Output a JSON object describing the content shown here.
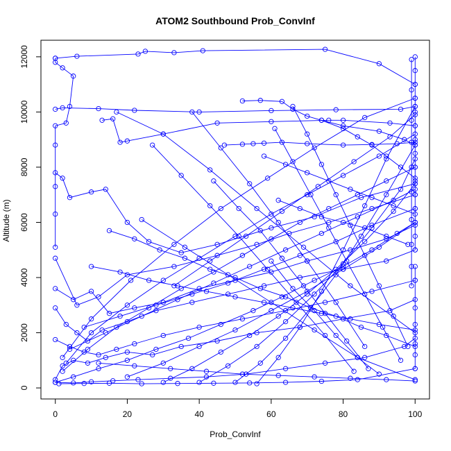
{
  "chart_data": {
    "type": "line",
    "title": "ATOM2 Southbound Prob_ConvInf",
    "xlabel": "Prob_ConvInf",
    "ylabel": "Altitude (m)",
    "xlim": [
      -4,
      104
    ],
    "ylim": [
      -400,
      12600
    ],
    "xticks": [
      0,
      20,
      40,
      60,
      80,
      100
    ],
    "yticks": [
      0,
      2000,
      4000,
      6000,
      8000,
      10000,
      12000
    ],
    "grid": false,
    "legend": "none",
    "series_color": "#0000ff",
    "marker": "open-circle",
    "series": [
      {
        "x": [
          0,
          0,
          2,
          5,
          4,
          3,
          0,
          0,
          0,
          0,
          0
        ],
        "y": [
          11950,
          11800,
          11600,
          11300,
          10200,
          9600,
          9500,
          8800,
          7300,
          6300,
          5100
        ]
      },
      {
        "x": [
          0,
          6,
          23,
          25,
          33,
          41,
          75,
          90,
          100
        ],
        "y": [
          11950,
          12020,
          12100,
          12200,
          12150,
          12220,
          12270,
          11750,
          11000
        ]
      },
      {
        "x": [
          0,
          2,
          12,
          22,
          40,
          60,
          78,
          96,
          100
        ],
        "y": [
          10100,
          10150,
          10120,
          10060,
          10000,
          10050,
          10080,
          10100,
          10200
        ]
      },
      {
        "x": [
          52,
          57,
          63,
          66,
          70,
          74,
          80,
          90,
          97,
          100
        ],
        "y": [
          10400,
          10420,
          10380,
          10100,
          9850,
          9700,
          9500,
          9300,
          9000,
          8800
        ]
      },
      {
        "x": [
          13,
          16,
          18,
          20,
          30,
          45,
          60,
          76,
          80,
          93,
          100
        ],
        "y": [
          9700,
          9750,
          8900,
          8950,
          9200,
          9600,
          9650,
          9700,
          9700,
          9600,
          9500
        ]
      },
      {
        "x": [
          47,
          52,
          55,
          58,
          63,
          70,
          80,
          88,
          95,
          100
        ],
        "y": [
          8800,
          8830,
          8850,
          8870,
          8900,
          8850,
          8800,
          8820,
          8850,
          8900
        ]
      },
      {
        "x": [
          0,
          2,
          4,
          10,
          14,
          20,
          26,
          35,
          45,
          60,
          72,
          85,
          100
        ],
        "y": [
          7800,
          7600,
          6900,
          7100,
          7200,
          6000,
          5300,
          4900,
          5200,
          5800,
          6200,
          6900,
          7400
        ]
      },
      {
        "x": [
          0,
          6,
          12,
          20,
          33,
          45,
          56,
          65,
          76,
          88,
          100
        ],
        "y": [
          4700,
          3000,
          3300,
          4100,
          4400,
          4800,
          5200,
          5600,
          6000,
          6500,
          7000
        ]
      },
      {
        "x": [
          0,
          5,
          10,
          15,
          22,
          30,
          40,
          50,
          60,
          70,
          82,
          92,
          100
        ],
        "y": [
          3600,
          3200,
          3500,
          2700,
          2900,
          3100,
          3600,
          3900,
          4200,
          4600,
          5000,
          5400,
          5900
        ]
      },
      {
        "x": [
          0,
          3,
          6,
          9,
          13,
          20,
          28,
          38,
          48,
          58,
          68,
          80,
          92,
          100
        ],
        "y": [
          2900,
          2300,
          2000,
          1700,
          2100,
          2400,
          2800,
          3100,
          3400,
          3700,
          4000,
          4300,
          4600,
          5000
        ]
      },
      {
        "x": [
          0,
          4,
          8,
          12,
          17,
          22,
          30,
          40,
          52,
          64,
          75,
          88,
          100
        ],
        "y": [
          1750,
          1500,
          1300,
          1200,
          1400,
          1600,
          1900,
          2200,
          2500,
          2800,
          3100,
          3500,
          3900
        ]
      },
      {
        "x": [
          0,
          2,
          5,
          9,
          14,
          20,
          27,
          35,
          45,
          56,
          68,
          80,
          93,
          100
        ],
        "y": [
          300,
          800,
          1000,
          900,
          1100,
          1300,
          1200,
          1500,
          1700,
          2000,
          2200,
          2500,
          2800,
          3200
        ]
      },
      {
        "x": [
          0,
          5,
          10,
          16,
          23,
          32,
          42,
          53,
          64,
          75,
          86,
          97,
          100
        ],
        "y": [
          200,
          180,
          220,
          260,
          300,
          350,
          400,
          500,
          700,
          900,
          1100,
          1500,
          1800
        ]
      },
      {
        "x": [
          1,
          8,
          15,
          24,
          34,
          44,
          54,
          64,
          74,
          84,
          100
        ],
        "y": [
          150,
          160,
          170,
          150,
          160,
          170,
          180,
          200,
          240,
          300,
          700
        ]
      },
      {
        "x": [
          100,
          95,
          88,
          80,
          72,
          63,
          55,
          46,
          37,
          28,
          20,
          12,
          5,
          0
        ],
        "y": [
          6000,
          5600,
          5000,
          4400,
          3900,
          3300,
          2800,
          2300,
          1800,
          1400,
          1000,
          700,
          400,
          200
        ]
      },
      {
        "x": [
          100,
          92,
          84,
          76,
          68,
          60,
          52,
          44,
          35,
          26,
          17,
          9,
          2
        ],
        "y": [
          8000,
          7500,
          7000,
          6500,
          6000,
          5400,
          4800,
          4200,
          3600,
          2900,
          2200,
          1400,
          600
        ]
      },
      {
        "x": [
          100,
          90,
          80,
          70,
          60,
          50,
          40,
          30,
          20,
          10,
          3
        ],
        "y": [
          9200,
          8400,
          7700,
          7000,
          6300,
          5500,
          4700,
          3900,
          3000,
          2000,
          900
        ]
      },
      {
        "x": [
          100,
          86,
          72,
          59,
          46,
          33,
          21,
          10,
          2
        ],
        "y": [
          10500,
          9800,
          8700,
          7600,
          6500,
          5200,
          3900,
          2500,
          1100
        ]
      },
      {
        "x": [
          17,
          30,
          43,
          56,
          69,
          82,
          100
        ],
        "y": [
          10000,
          9200,
          7900,
          6500,
          5100,
          3700,
          2000
        ]
      },
      {
        "x": [
          24,
          36,
          48,
          60,
          72,
          84,
          100
        ],
        "y": [
          6100,
          5100,
          4100,
          3100,
          2100,
          1100,
          300
        ]
      },
      {
        "x": [
          44,
          51,
          57,
          63,
          69,
          75,
          81,
          87
        ],
        "y": [
          7500,
          6500,
          5700,
          4700,
          3700,
          2700,
          1700,
          700
        ]
      },
      {
        "x": [
          27,
          35,
          43,
          51,
          59,
          67,
          75,
          83
        ],
        "y": [
          8800,
          7700,
          6600,
          5500,
          4300,
          3100,
          1900,
          600
        ]
      },
      {
        "x": [
          38,
          46,
          54,
          62,
          70,
          78,
          86
        ],
        "y": [
          10000,
          8700,
          7400,
          6000,
          4600,
          3100,
          1500
        ]
      },
      {
        "x": [
          61,
          66,
          71,
          76,
          81,
          86,
          91,
          96
        ],
        "y": [
          9400,
          8200,
          7000,
          5800,
          4600,
          3400,
          2200,
          1000
        ]
      },
      {
        "x": [
          66,
          70,
          74,
          78,
          82,
          86,
          90,
          94,
          98
        ],
        "y": [
          10200,
          9200,
          8100,
          7000,
          5900,
          4800,
          3700,
          2600,
          1500
        ]
      },
      {
        "x": [
          10,
          18,
          26,
          34,
          42,
          50,
          58,
          66,
          74,
          82,
          90,
          100
        ],
        "y": [
          4400,
          4200,
          3900,
          3700,
          3500,
          3300,
          3100,
          2900,
          2700,
          2500,
          2300,
          2100
        ]
      },
      {
        "x": [
          15,
          22,
          29,
          36,
          43,
          50,
          57,
          64,
          71,
          78,
          85,
          92,
          100
        ],
        "y": [
          5700,
          5400,
          5000,
          4700,
          4300,
          4000,
          3600,
          3300,
          2900,
          2600,
          2200,
          1900,
          1500
        ]
      },
      {
        "x": [
          8,
          18,
          28,
          38,
          48,
          58,
          68,
          78,
          88,
          100
        ],
        "y": [
          2200,
          2600,
          3000,
          3400,
          3800,
          4300,
          4800,
          5300,
          5900,
          6500
        ]
      },
      {
        "x": [
          20,
          30,
          40,
          50,
          60,
          70,
          80,
          90,
          100
        ],
        "y": [
          400,
          900,
          1500,
          2100,
          2800,
          3500,
          4300,
          5100,
          6000
        ]
      },
      {
        "x": [
          30,
          38,
          46,
          54,
          62,
          70,
          78,
          86,
          94,
          100
        ],
        "y": [
          200,
          700,
          1300,
          1900,
          2600,
          3400,
          4300,
          5300,
          6400,
          7400
        ]
      },
      {
        "x": [
          40,
          48,
          56,
          64,
          72,
          80,
          88,
          96,
          100
        ],
        "y": [
          200,
          800,
          1500,
          2400,
          3400,
          4500,
          5800,
          7200,
          8300
        ]
      },
      {
        "x": [
          50,
          57,
          64,
          71,
          78,
          85,
          92,
          100
        ],
        "y": [
          200,
          900,
          1800,
          2900,
          4100,
          5500,
          7000,
          8800
        ]
      },
      {
        "x": [
          56,
          62,
          68,
          74,
          80,
          86,
          92,
          100
        ],
        "y": [
          150,
          1100,
          2200,
          3500,
          5000,
          6600,
          8300,
          10200
        ]
      },
      {
        "x": [
          33,
          43,
          53,
          63,
          73,
          83,
          93,
          100
        ],
        "y": [
          3700,
          4600,
          5500,
          6400,
          7300,
          8200,
          9100,
          9900
        ]
      },
      {
        "x": [
          4,
          14,
          24,
          34,
          44,
          54,
          64,
          74,
          84,
          94,
          100
        ],
        "y": [
          1400,
          2000,
          2600,
          3200,
          3800,
          4400,
          5000,
          5600,
          6200,
          6800,
          7200
        ]
      },
      {
        "x": [
          100,
          100,
          100,
          100,
          100,
          100,
          100,
          100,
          100,
          100,
          100,
          100,
          100,
          100,
          100
        ],
        "y": [
          12000,
          11500,
          11000,
          10500,
          10000,
          9500,
          9000,
          8500,
          8000,
          7500,
          7000,
          6500,
          6000,
          5500,
          5000
        ]
      },
      {
        "x": [
          99,
          99,
          99,
          99,
          99,
          99,
          99,
          99,
          99,
          99
        ],
        "y": [
          11900,
          10800,
          9700,
          8900,
          8000,
          7100,
          6100,
          5200,
          4400,
          3700
        ]
      },
      {
        "x": [
          100,
          100,
          100,
          100,
          100,
          100,
          100
        ],
        "y": [
          4400,
          3900,
          2900,
          2300,
          1600,
          1200,
          700
        ]
      },
      {
        "x": [
          74,
          80,
          84,
          88,
          92,
          96,
          100
        ],
        "y": [
          9700,
          9400,
          9100,
          8800,
          8400,
          8000,
          7600
        ]
      },
      {
        "x": [
          58,
          64,
          70,
          76,
          82,
          88,
          94,
          100
        ],
        "y": [
          8400,
          8100,
          7800,
          7500,
          7200,
          6900,
          6600,
          6300
        ]
      },
      {
        "x": [
          62,
          68,
          74,
          80,
          86,
          92,
          98
        ],
        "y": [
          6800,
          6500,
          6200,
          6000,
          5800,
          5500,
          5200
        ]
      },
      {
        "x": [
          12,
          22,
          32,
          42,
          52,
          62,
          72,
          82,
          92,
          100
        ],
        "y": [
          900,
          800,
          700,
          600,
          500,
          450,
          400,
          350,
          300,
          250
        ]
      },
      {
        "x": [
          60,
          66,
          72,
          78,
          84,
          90
        ],
        "y": [
          4600,
          3600,
          2800,
          1900,
          1100,
          500
        ]
      }
    ]
  }
}
